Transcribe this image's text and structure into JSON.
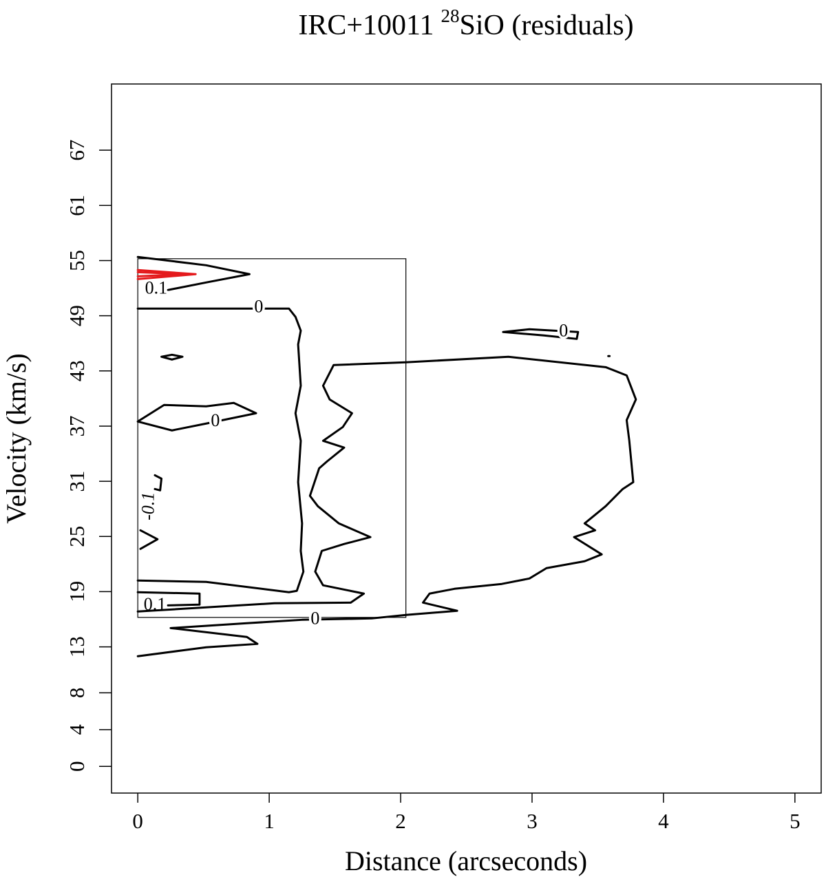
{
  "chart_data": {
    "type": "contour",
    "title": {
      "main": "IRC+10011",
      "superscript": "28",
      "rest": "SiO (residuals)"
    },
    "xlabel": "Distance (arcseconds)",
    "ylabel": "Velocity (km/s)",
    "xlim": [
      -0.2,
      5.2
    ],
    "ylim": [
      -2.9,
      74.2
    ],
    "xticks": [
      0,
      1,
      2,
      3,
      4,
      5
    ],
    "yticks": [
      0,
      4,
      8,
      13,
      19,
      25,
      31,
      37,
      43,
      49,
      55,
      61,
      67
    ],
    "rectangle": {
      "x": [
        0,
        2.04
      ],
      "y": [
        16.2,
        55.2
      ]
    },
    "contours": [
      {
        "level": 0.1,
        "color": "#000000",
        "pieces": [
          {
            "x": [
              0,
              0.52,
              0.85,
              0.52,
              0.23
            ],
            "y": [
              55.39,
              54.49,
              53.52,
              52.62,
              51.8
            ]
          },
          {
            "x": [
              0,
              0.47,
              0.47,
              0.23
            ],
            "y": [
              18.94,
              18.79,
              17.59,
              17.51
            ]
          }
        ],
        "label_positions": [
          [
            0.14,
            51.87
          ],
          [
            0.13,
            17.44
          ]
        ]
      },
      {
        "level": 0,
        "color": "#000000",
        "pieces": [
          {
            "x": [
              0,
              0.83,
              1.15,
              1.2,
              1.24,
              1.22,
              1.24,
              1.2,
              1.24,
              1.22,
              1.25,
              1.24,
              1.26,
              1.21,
              1.15,
              0.52,
              0
            ],
            "y": [
              49.78,
              49.78,
              49.78,
              48.88,
              47.38,
              45.88,
              41.39,
              38.4,
              35.4,
              30.91,
              26.42,
              23.43,
              21.18,
              19.09,
              18.94,
              20.06,
              20.21
            ]
          },
          {
            "x": [
              0,
              1.04,
              1.62,
              1.72,
              1.41,
              1.35,
              1.4,
              1.57,
              1.77,
              1.53,
              1.37,
              1.31,
              1.38,
              1.44,
              1.57,
              1.41,
              1.56,
              1.63,
              1.46,
              1.41,
              1.49,
              2.04,
              2.82,
              3.56,
              3.72,
              3.79,
              3.72,
              3.74,
              3.77,
              3.69,
              3.56,
              3.4,
              3.48,
              3.32,
              3.53,
              3.4,
              3.11,
              2.98,
              2.77,
              2.41,
              2.22,
              2.17,
              2.43,
              2.04,
              1.78,
              1.25,
              0.83,
              0.25,
              0.83,
              0.91,
              0.52,
              0
            ],
            "y": [
              16.84,
              17.74,
              17.81,
              18.79,
              19.69,
              21.18,
              23.43,
              24.18,
              24.93,
              26.42,
              28.29,
              29.42,
              32.41,
              33.16,
              34.66,
              35.4,
              36.9,
              38.4,
              39.9,
              41.39,
              43.64,
              43.94,
              44.54,
              43.41,
              42.51,
              39.9,
              37.65,
              35.4,
              30.91,
              30.16,
              28.29,
              26.42,
              25.67,
              24.93,
              23.05,
              22.31,
              21.56,
              20.43,
              19.84,
              19.31,
              18.79,
              17.81,
              16.92,
              16.47,
              16.09,
              15.94,
              15.57,
              15.04,
              14.07,
              13.32,
              12.95,
              11.98
            ]
          },
          {
            "x": [
              0,
              0.2,
              0.52,
              0.73,
              0.9,
              0.52,
              0.26,
              0
            ],
            "y": [
              37.5,
              39.3,
              39.15,
              39.52,
              38.4,
              37.28,
              36.53,
              37.5
            ]
          },
          {
            "x": [
              0.18,
              0.26,
              0.34,
              0.26,
              0.18
            ],
            "y": [
              44.54,
              44.76,
              44.54,
              44.24,
              44.54
            ]
          },
          {
            "x": [
              2.78,
              2.98,
              3.35,
              3.34,
              3.09,
              2.78
            ],
            "y": [
              47.23,
              47.53,
              47.23,
              46.48,
              46.86,
              47.23
            ]
          },
          {
            "x": [
              3.58,
              3.59
            ],
            "y": [
              44.61,
              44.61
            ]
          }
        ],
        "label_positions": [
          [
            0.92,
            49.85
          ],
          [
            1.35,
            15.94
          ],
          [
            0.59,
            37.43
          ],
          [
            3.24,
            47.23
          ]
        ]
      },
      {
        "level": -0.1,
        "color": "#000000",
        "label_angle": -90,
        "pieces": [
          {
            "x": [
              0.13,
              0.18,
              0.17,
              0.13
            ],
            "y": [
              31.66,
              31.29,
              30.01,
              30.16
            ]
          },
          {
            "x": [
              0.02,
              0.15,
              0.02
            ],
            "y": [
              25.67,
              24.7,
              23.65
            ]
          }
        ],
        "label_positions": [
          [
            0.09,
            28.29
          ]
        ]
      },
      {
        "color": "#e41a1c",
        "pieces": [
          {
            "x": [
              0,
              0.44,
              0
            ],
            "y": [
              53.97,
              53.52,
              52.99
            ]
          }
        ]
      },
      {
        "color": "#e41a1c",
        "pieces": [
          {
            "x": [
              0,
              0.36,
              0
            ],
            "y": [
              53.74,
              53.52,
              53.29
            ]
          }
        ]
      }
    ]
  }
}
